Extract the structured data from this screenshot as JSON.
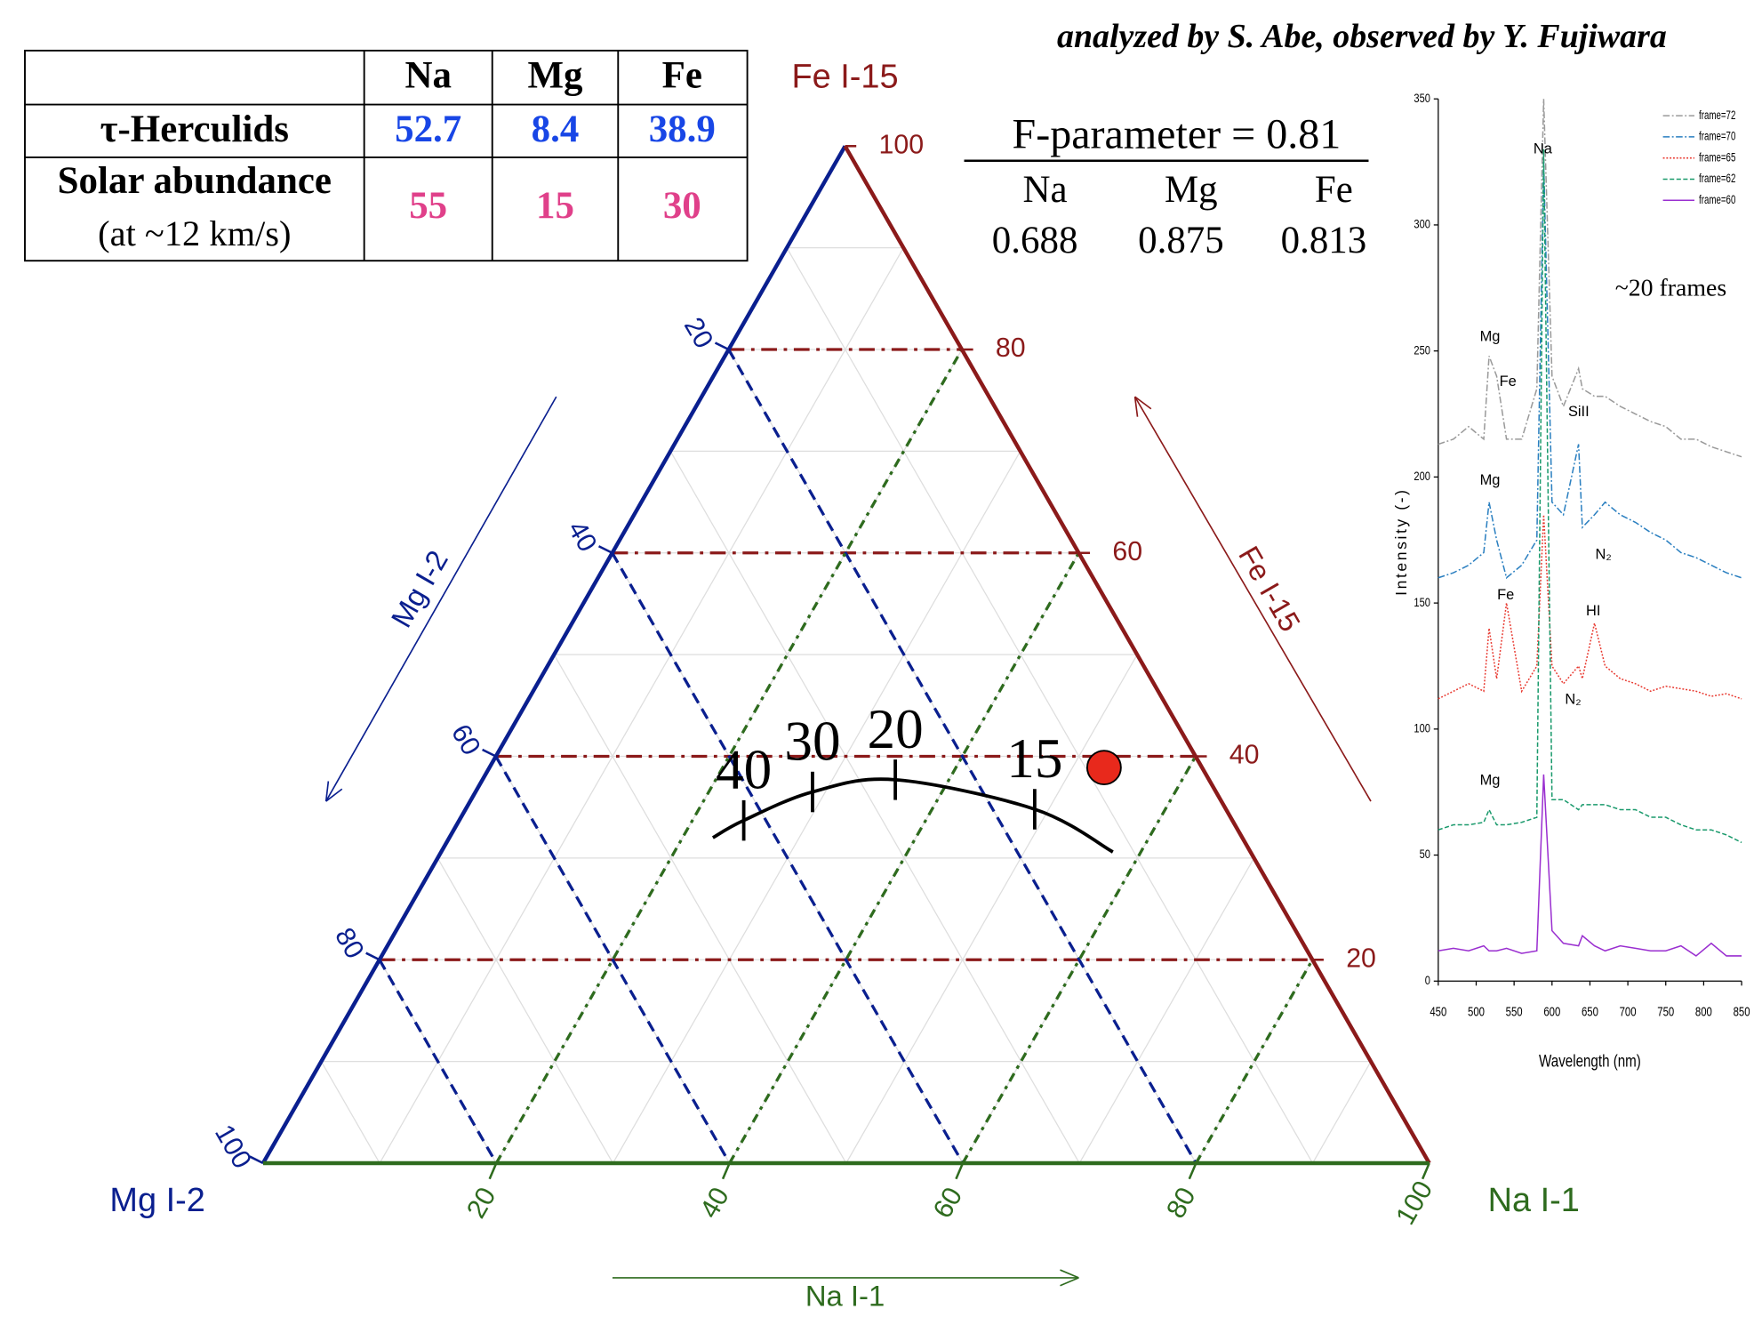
{
  "credit": "analyzed by S. Abe, observed by Y. Fujiwara",
  "table": {
    "columns": [
      "Na",
      "Mg",
      "Fe"
    ],
    "rows": [
      {
        "label": [
          "τ-Herculids"
        ],
        "values": [
          52.7,
          8.4,
          38.9
        ],
        "color": "#1846e6"
      },
      {
        "label": [
          "Solar abundance",
          "(at ~12 km/s)"
        ],
        "values": [
          55,
          15,
          30
        ],
        "color": "#e0408a"
      }
    ]
  },
  "f_parameter": {
    "title": "F-parameter = 0.81",
    "columns": [
      "Na",
      "Mg",
      "Fe"
    ],
    "values": [
      0.688,
      0.875,
      0.813
    ]
  },
  "chart_data": [
    {
      "type": "ternary",
      "axes": {
        "fe": {
          "label": "Fe I-15",
          "arrow_label": "Fe I-15",
          "ticks": [
            20,
            40,
            60,
            80,
            100
          ],
          "color": "#8b1a1a"
        },
        "mg": {
          "label": "Mg I-2",
          "arrow_label": "Mg I-2",
          "ticks": [
            20,
            40,
            60,
            80,
            100
          ],
          "color": "#0a1f8f"
        },
        "na": {
          "label": "Na I-1",
          "arrow_label": "Na I-1",
          "ticks": [
            20,
            40,
            60,
            80,
            100
          ],
          "color": "#2e6b1e"
        }
      },
      "grid": [
        10,
        20,
        30,
        40,
        50,
        60,
        70,
        80,
        90
      ],
      "point_color": "#e8291c",
      "curve": {
        "na": [
          22.6,
          24.4,
          28.9,
          35.4,
          48.8,
          57.6
        ],
        "mg": [
          45.4,
          41.9,
          34.6,
          26.9,
          16.4,
          11.8
        ],
        "fe": [
          32.0,
          33.7,
          36.5,
          37.7,
          34.8,
          30.6
        ],
        "labels": [
          null,
          40,
          30,
          20,
          15,
          null
        ]
      }
    },
    {
      "type": "line",
      "x": [
        450,
        470,
        490,
        510,
        517,
        527,
        540,
        560,
        580,
        589,
        600,
        615,
        635,
        640,
        656,
        670,
        690,
        710,
        730,
        750,
        770,
        790,
        810,
        830,
        850
      ],
      "xlim": [
        450,
        850
      ],
      "xticks": [
        450,
        500,
        550,
        600,
        650,
        700,
        750,
        800,
        850
      ],
      "ylim": [
        0,
        350
      ],
      "yticks": [
        0,
        50,
        100,
        150,
        200,
        250,
        300,
        350
      ],
      "xlabel": "Wavelength (nm)",
      "ylabel": "Intensity (-)",
      "legend": "upper right",
      "series": [
        {
          "name": "frame=72",
          "color": "#9a9a9a",
          "style": "dashdot",
          "values": [
            213,
            215,
            220,
            215,
            248,
            240,
            215,
            215,
            235,
            350,
            240,
            228,
            243,
            235,
            232,
            232,
            228,
            225,
            222,
            220,
            215,
            215,
            212,
            210,
            208
          ]
        },
        {
          "name": "frame=70",
          "color": "#2a7fc0",
          "style": "dashdot",
          "values": [
            160,
            162,
            165,
            170,
            190,
            175,
            160,
            165,
            175,
            325,
            190,
            185,
            213,
            180,
            185,
            190,
            185,
            182,
            178,
            175,
            170,
            168,
            165,
            162,
            160
          ]
        },
        {
          "name": "frame=65",
          "color": "#e8382f",
          "style": "dotted",
          "values": [
            112,
            115,
            118,
            115,
            140,
            120,
            150,
            115,
            125,
            185,
            125,
            118,
            125,
            120,
            142,
            125,
            120,
            118,
            115,
            117,
            116,
            115,
            113,
            114,
            112
          ]
        },
        {
          "name": "frame=62",
          "color": "#1a9a6c",
          "style": "dashed",
          "values": [
            60,
            62,
            62,
            63,
            68,
            62,
            62,
            63,
            65,
            330,
            72,
            72,
            68,
            70,
            70,
            70,
            68,
            68,
            65,
            65,
            62,
            60,
            60,
            58,
            55
          ]
        },
        {
          "name": "frame=60",
          "color": "#9a2fd0",
          "style": "solid",
          "values": [
            12,
            13,
            12,
            14,
            12,
            12,
            13,
            11,
            12,
            82,
            20,
            15,
            14,
            18,
            14,
            12,
            14,
            13,
            12,
            12,
            14,
            10,
            15,
            10,
            10
          ]
        }
      ],
      "annotations": [
        "Na",
        "Mg",
        "Fe",
        "SiII",
        "Mg",
        "N₂",
        "Fe",
        "HI",
        "N₂",
        "Mg",
        "~20 frames"
      ]
    }
  ]
}
